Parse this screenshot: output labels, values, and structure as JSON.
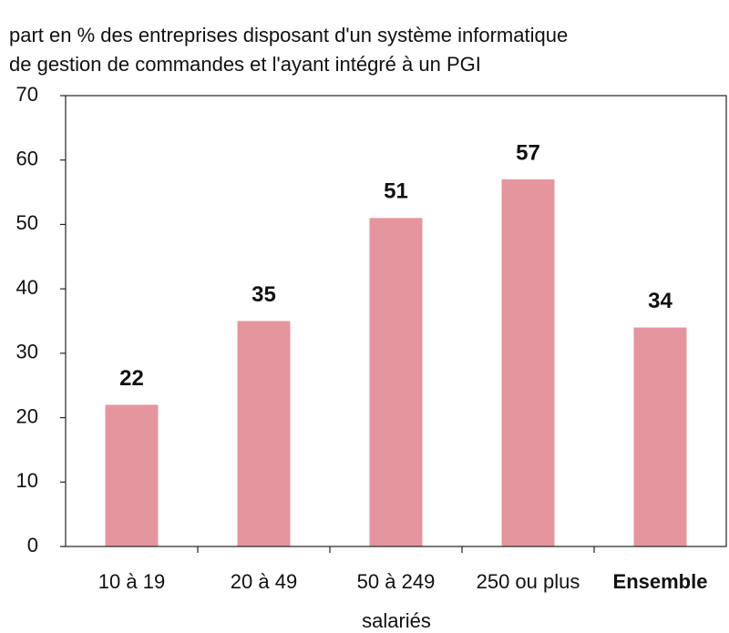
{
  "chart_data": {
    "type": "bar",
    "title": [
      "part en % des entreprises disposant d'un système informatique",
      "de gestion de commandes et l'ayant intégré à un PGI"
    ],
    "x_label": "salariés",
    "categories": [
      "10 à 19",
      "20 à 49",
      "50 à 249",
      "250 ou plus",
      "Ensemble"
    ],
    "emphasized": [
      false,
      false,
      false,
      false,
      true
    ],
    "values": [
      22,
      35,
      51,
      57,
      34
    ],
    "color": "#e5959e",
    "ylim": [
      0,
      70
    ],
    "yticks": [
      0,
      10,
      20,
      30,
      40,
      50,
      60,
      70
    ],
    "grid": false
  }
}
